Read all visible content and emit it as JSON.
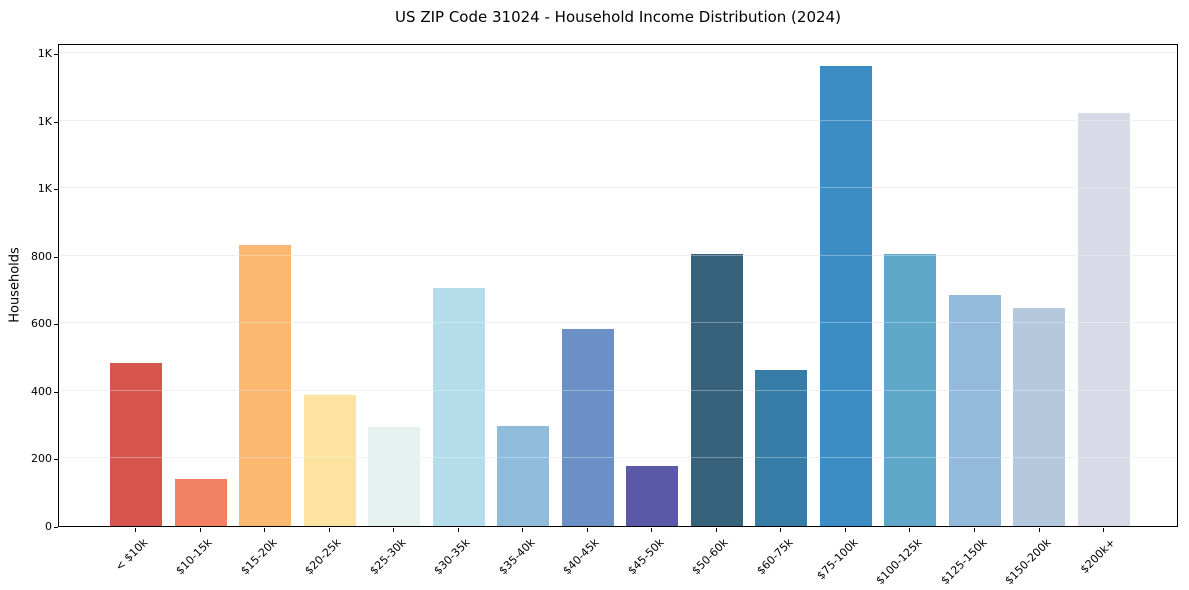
{
  "chart_data": {
    "type": "bar",
    "title": "US ZIP Code 31024 - Household Income Distribution (2024)",
    "xlabel": "",
    "ylabel": "Households",
    "categories": [
      "< $10k",
      "$10-15k",
      "$15-20k",
      "$20-25k",
      "$25-30k",
      "$30-35k",
      "$35-40k",
      "$40-45k",
      "$45-50k",
      "$50-60k",
      "$60-75k",
      "$75-100k",
      "$100-125k",
      "$125-150k",
      "$150-200k",
      "$200k+"
    ],
    "values": [
      482,
      138,
      833,
      387,
      292,
      706,
      295,
      584,
      179,
      805,
      462,
      1362,
      806,
      684,
      645,
      1223
    ],
    "bar_colors": [
      "#d6564e",
      "#f28163",
      "#fab871",
      "#fce3a0",
      "#e6f2f0",
      "#b5dcea",
      "#8fbcdb",
      "#6b90c5",
      "#5c58a8",
      "#37627b",
      "#357ca6",
      "#3b8dc3",
      "#5fa7c9",
      "#94badb",
      "#b4c9de",
      "#d8dbe7"
    ],
    "ylim": [
      0,
      1430
    ],
    "ytick_values": [
      0,
      200,
      400,
      600,
      800,
      1000,
      1200,
      1400
    ],
    "ytick_labels": [
      "0",
      "200",
      "400",
      "600",
      "800",
      "1K",
      "1K",
      "1K"
    ],
    "grid": "horizontal",
    "legend": "none",
    "background_color": "#ffffff",
    "spine_color": "#000000"
  }
}
